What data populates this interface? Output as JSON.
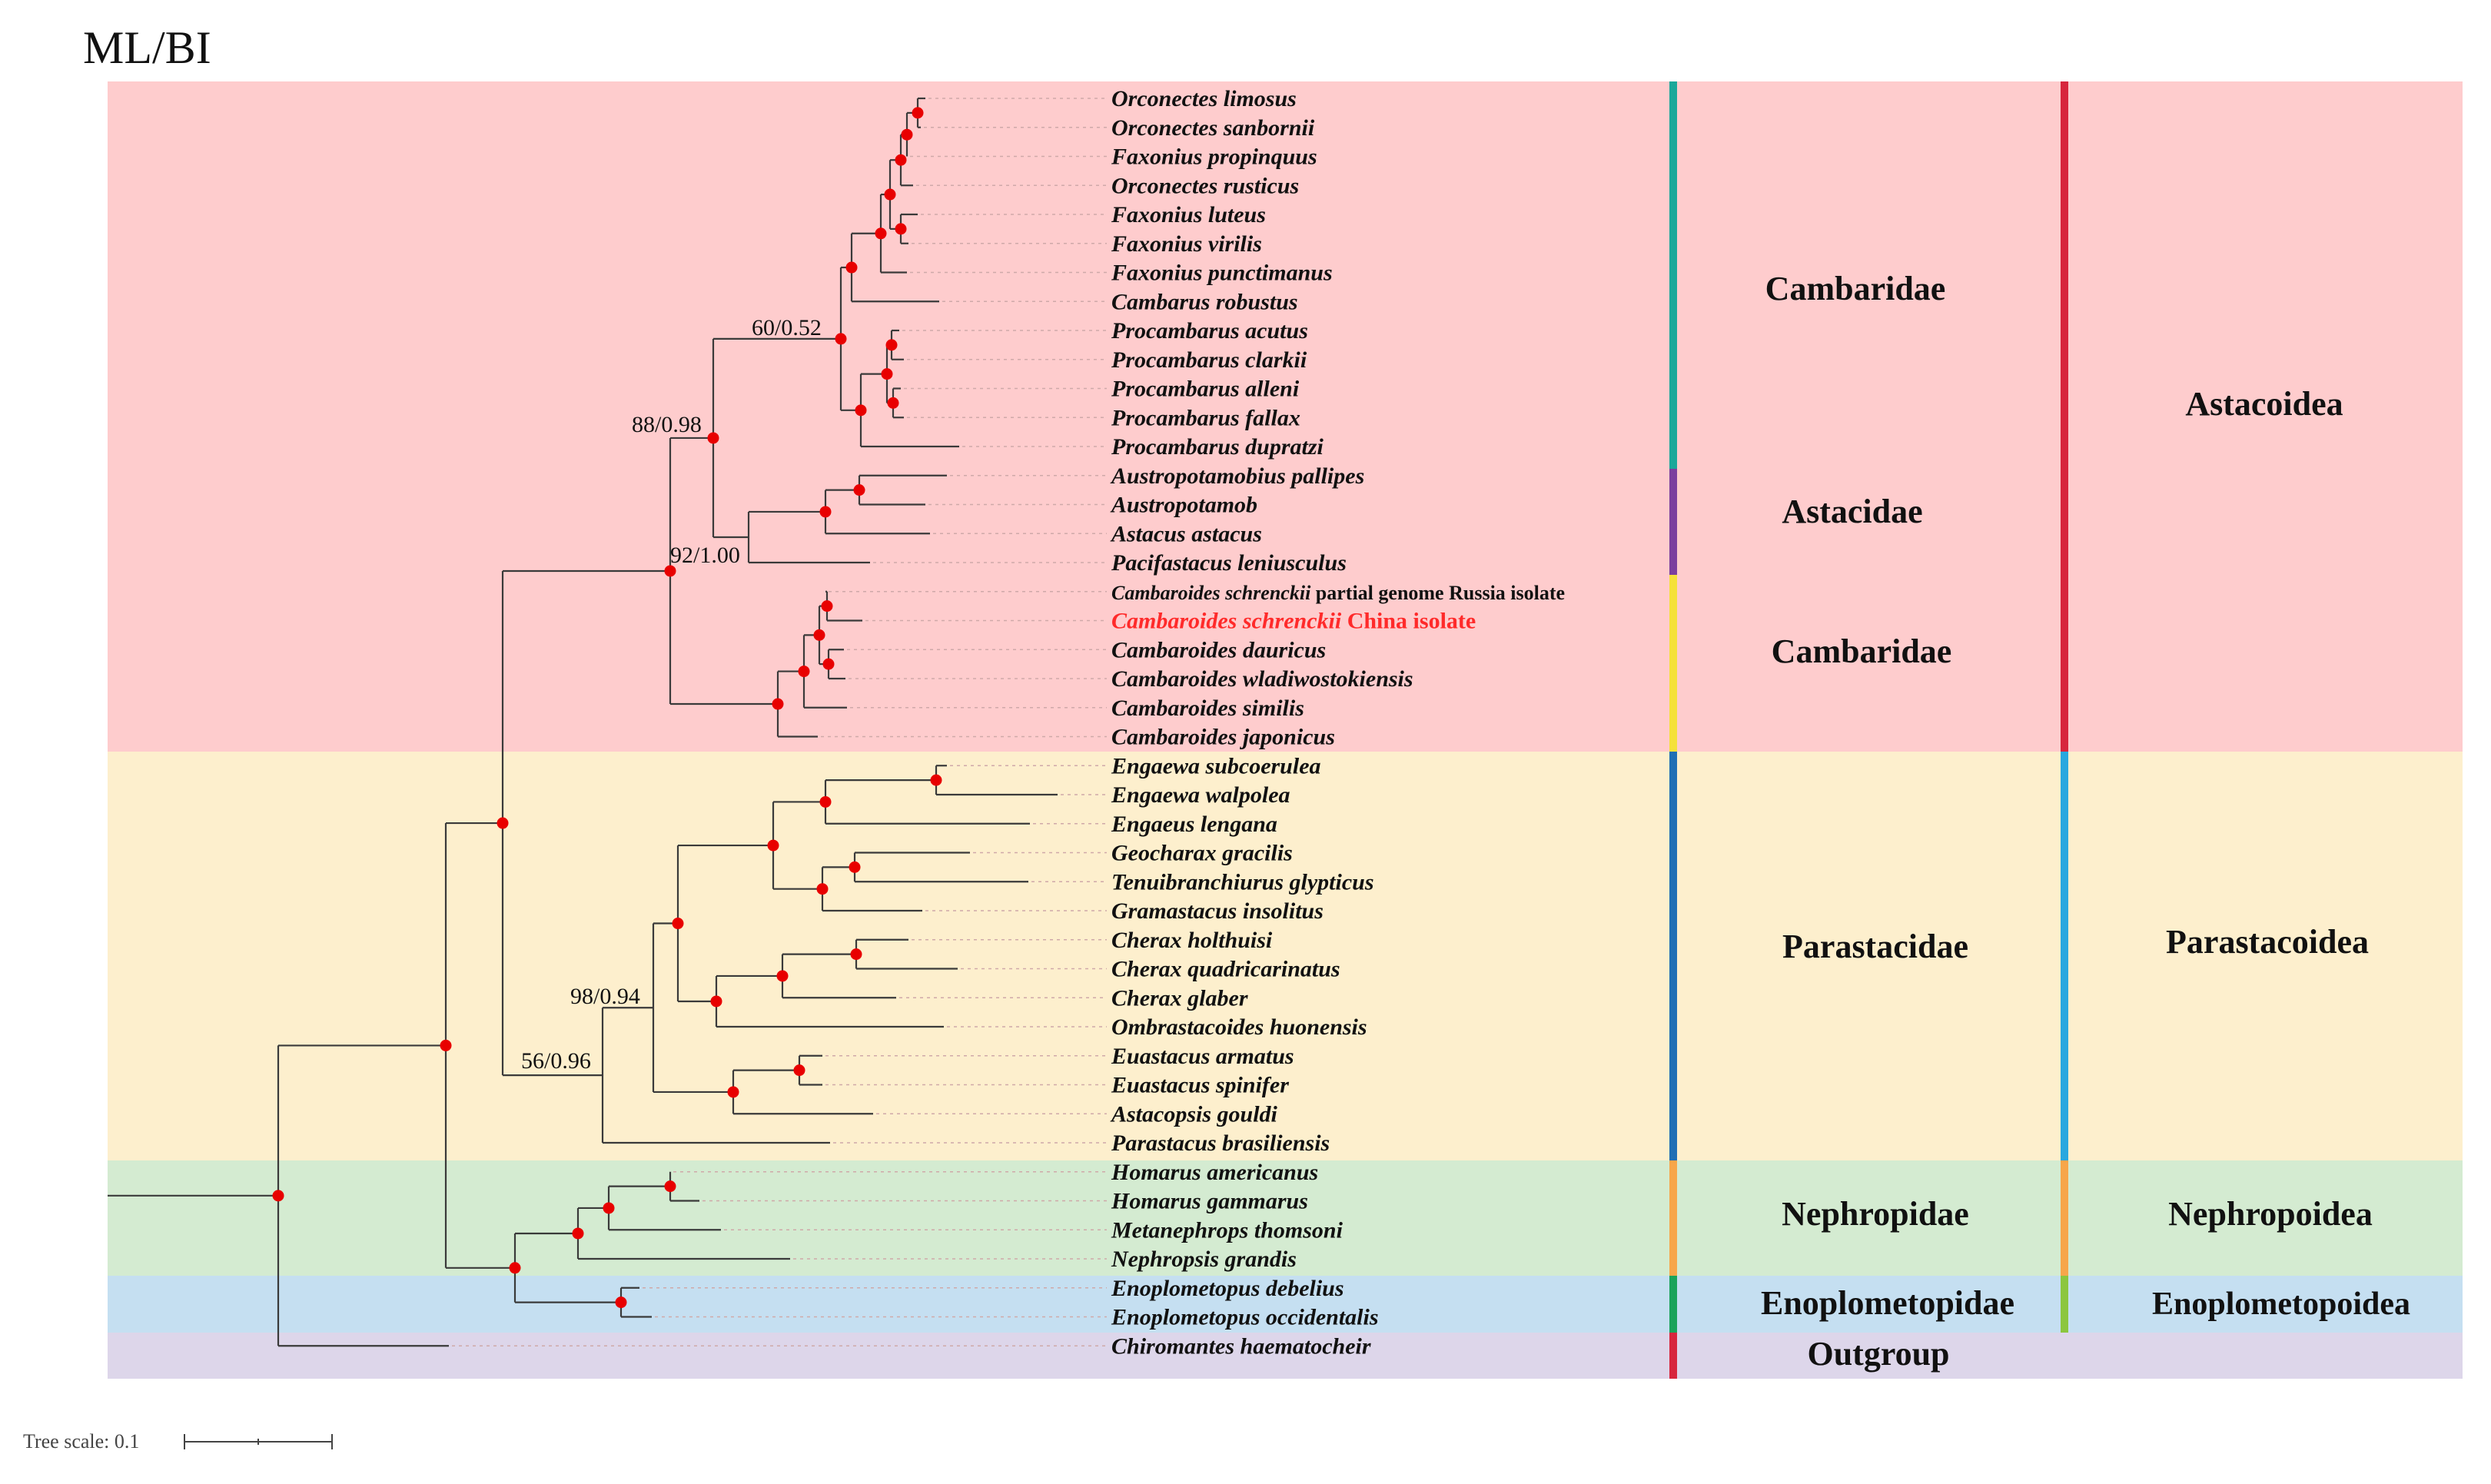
{
  "title": "ML/BI",
  "colors": {
    "astacoidea_band": "#fecccd",
    "parastacoidea_band": "#fdefcd",
    "nephropoidea_band": "#d4ebd1",
    "enoplometopoidea_band": "#c5dff1",
    "outgroup_band": "#ddd6ea",
    "node_marker": "#e80000",
    "highlight_text": "#ff2a2a"
  },
  "taxa": [
    {
      "name": "Orconectes limosus"
    },
    {
      "name": "Orconectes sanbornii"
    },
    {
      "name": "Faxonius propinquus"
    },
    {
      "name": "Orconectes rusticus"
    },
    {
      "name": "Faxonius luteus"
    },
    {
      "name": "Faxonius virilis"
    },
    {
      "name": "Faxonius punctimanus"
    },
    {
      "name": "Cambarus robustus"
    },
    {
      "name": "Procambarus acutus"
    },
    {
      "name": "Procambarus clarkii"
    },
    {
      "name": "Procambarus alleni"
    },
    {
      "name": "Procambarus fallax"
    },
    {
      "name": "Procambarus dupratzi"
    },
    {
      "name": "Austropotamobius pallipes"
    },
    {
      "name": "Austropotamob"
    },
    {
      "name": "Astacus astacus"
    },
    {
      "name": "Pacifastacus leniusculus"
    },
    {
      "name": "Cambaroides schrenckii",
      "suffix": "partial genome Russia isolate"
    },
    {
      "name": "Cambaroides schrenckii",
      "suffix": "China isolate",
      "highlight": true
    },
    {
      "name": "Cambaroides dauricus"
    },
    {
      "name": "Cambaroides wladiwostokiensis"
    },
    {
      "name": "Cambaroides similis"
    },
    {
      "name": "Cambaroides japonicus"
    },
    {
      "name": "Engaewa subcoerulea"
    },
    {
      "name": "Engaewa walpolea"
    },
    {
      "name": "Engaeus lengana"
    },
    {
      "name": "Geocharax gracilis"
    },
    {
      "name": "Tenuibranchiurus glypticus"
    },
    {
      "name": "Gramastacus insolitus"
    },
    {
      "name": "Cherax holthuisi"
    },
    {
      "name": "Cherax quadricarinatus"
    },
    {
      "name": "Cherax glaber"
    },
    {
      "name": "Ombrastacoides huonensis"
    },
    {
      "name": "Euastacus armatus"
    },
    {
      "name": "Euastacus spinifer"
    },
    {
      "name": "Astacopsis gouldi"
    },
    {
      "name": "Parastacus brasiliensis"
    },
    {
      "name": "Homarus americanus"
    },
    {
      "name": "Homarus gammarus"
    },
    {
      "name": "Metanephrops thomsoni"
    },
    {
      "name": "Nephropsis grandis"
    },
    {
      "name": "Enoplometopus debelius"
    },
    {
      "name": "Enoplometopus occidentalis"
    },
    {
      "name": "Chiromantes haematocheir"
    }
  ],
  "support_labels": [
    {
      "text": "60/0.52"
    },
    {
      "text": "88/0.98"
    },
    {
      "text": "92/1.00"
    },
    {
      "text": "98/0.94"
    },
    {
      "text": "56/0.96"
    }
  ],
  "families": [
    {
      "label": "Cambaridae",
      "color": "#1aa89a"
    },
    {
      "label": "Astacidae",
      "color": "#7b3f9e"
    },
    {
      "label": "Cambaridae",
      "color": "#f5e13a"
    },
    {
      "label": "Parastacidae",
      "color": "#1f6fb5"
    },
    {
      "label": "Nephropidae",
      "color": "#f7a64a"
    },
    {
      "label": "Enoplometopidae",
      "color": "#1ba35a"
    },
    {
      "label": "Outgroup",
      "color": "#d7263d"
    }
  ],
  "superfamilies": [
    {
      "label": "Astacoidea",
      "color": "#d7263d"
    },
    {
      "label": "Parastacoidea",
      "color": "#29a8df"
    },
    {
      "label": "Nephropoidea",
      "color": "#f7a64a"
    },
    {
      "label": "Enoplometopoidea",
      "color": "#8cc63f"
    }
  ],
  "scale_bar": {
    "label": "Tree scale: 0.1"
  }
}
